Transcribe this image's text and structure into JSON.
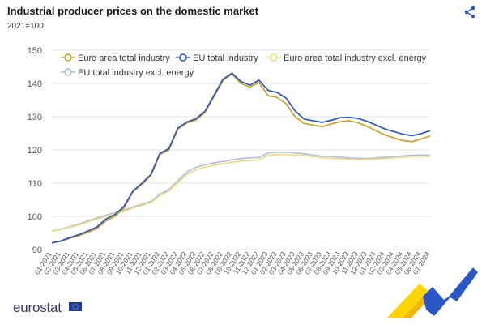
{
  "page": {
    "title": "Industrial producer prices on the domestic market",
    "subtitle": "2021=100",
    "logo": "eurostat"
  },
  "icons": {
    "share": "share-icon",
    "flag": "eu-flag-icon",
    "brand": "eurostat-brand-graphic"
  },
  "colors": {
    "euro_total": "#c9a227",
    "eu_total": "#2a56c6",
    "euro_excl": "#f0dc7e",
    "eu_excl": "#aebfe6",
    "grid": "#e6e6e6",
    "axis_text": "#555555",
    "brand_yellow": "#ffd400",
    "brand_blue": "#2a56c6"
  },
  "chart_data": {
    "type": "line",
    "title": "Industrial producer prices on the domestic market",
    "ylabel": "2021=100",
    "ylim": [
      90,
      150
    ],
    "yticks": [
      90,
      100,
      110,
      120,
      130,
      140,
      150
    ],
    "grid": true,
    "legend": "top-left",
    "categories": [
      "01-2021",
      "02-2021",
      "03-2021",
      "04-2021",
      "05-2021",
      "06-2021",
      "07-2021",
      "08-2021",
      "09-2021",
      "10-2021",
      "11-2021",
      "12-2021",
      "01-2022",
      "02-2022",
      "03-2022",
      "04-2022",
      "05-2022",
      "06-2022",
      "07-2022",
      "08-2022",
      "09-2022",
      "10-2022",
      "11-2022",
      "12-2022",
      "01-2023",
      "02-2023",
      "03-2023",
      "04-2023",
      "05-2023",
      "06-2023",
      "07-2023",
      "08-2023",
      "09-2023",
      "10-2023",
      "11-2023",
      "12-2023",
      "01-2024",
      "02-2024",
      "03-2024",
      "04-2024",
      "05-2024",
      "06-2024",
      "07-2024"
    ],
    "series": [
      {
        "name": "Euro area total industry",
        "values": [
          92.0,
          92.5,
          93.4,
          94.2,
          95.2,
          96.3,
          98.6,
          100.0,
          102.5,
          107.4,
          109.6,
          112.3,
          118.6,
          120.0,
          126.3,
          128.1,
          129.0,
          131.2,
          136.0,
          140.9,
          142.8,
          140.0,
          138.9,
          140.3,
          136.3,
          135.8,
          133.9,
          130.0,
          128.0,
          127.5,
          127.0,
          127.8,
          128.5,
          128.8,
          128.2,
          127.1,
          125.8,
          124.5,
          123.6,
          122.8,
          122.5,
          123.3,
          124.2
        ]
      },
      {
        "name": "EU total industry",
        "values": [
          92.0,
          92.6,
          93.6,
          94.5,
          95.6,
          96.8,
          99.2,
          100.5,
          103.0,
          107.6,
          110.0,
          112.6,
          119.0,
          120.4,
          126.6,
          128.4,
          129.4,
          131.6,
          136.4,
          141.3,
          143.1,
          140.6,
          139.5,
          141.0,
          137.9,
          137.3,
          135.6,
          131.8,
          129.3,
          128.8,
          128.3,
          128.9,
          129.7,
          129.8,
          129.5,
          128.6,
          127.5,
          126.3,
          125.5,
          124.7,
          124.3,
          124.9,
          125.8
        ]
      },
      {
        "name": "Euro area total industry excl. energy",
        "values": [
          95.5,
          96.0,
          96.7,
          97.4,
          98.3,
          99.2,
          100.0,
          100.8,
          101.5,
          102.5,
          103.3,
          104.1,
          106.3,
          107.6,
          110.2,
          112.6,
          114.1,
          114.8,
          115.4,
          115.8,
          116.3,
          116.6,
          116.8,
          117.0,
          118.4,
          118.6,
          118.6,
          118.5,
          118.3,
          118.0,
          117.6,
          117.5,
          117.3,
          117.2,
          117.1,
          117.1,
          117.3,
          117.4,
          117.6,
          117.8,
          118.0,
          118.1,
          118.0
        ]
      },
      {
        "name": "EU total industry excl. energy",
        "values": [
          95.6,
          96.1,
          96.9,
          97.7,
          98.6,
          99.5,
          100.3,
          101.1,
          101.9,
          102.8,
          103.6,
          104.5,
          106.7,
          108.0,
          110.8,
          113.3,
          114.8,
          115.5,
          116.1,
          116.5,
          117.0,
          117.4,
          117.6,
          117.7,
          119.1,
          119.3,
          119.3,
          119.1,
          118.8,
          118.5,
          118.1,
          118.0,
          117.8,
          117.6,
          117.5,
          117.4,
          117.6,
          117.8,
          118.0,
          118.2,
          118.4,
          118.5,
          118.4
        ]
      }
    ]
  }
}
